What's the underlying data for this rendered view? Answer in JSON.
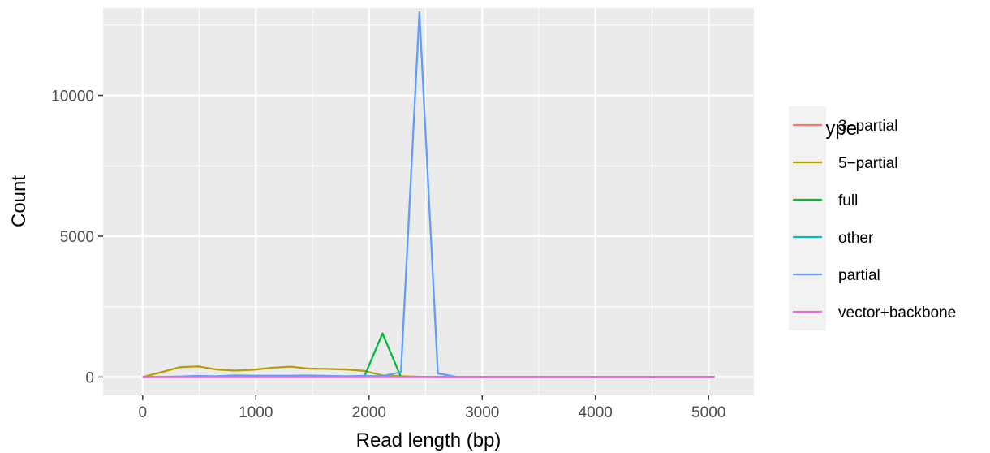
{
  "chart_data": {
    "type": "line",
    "title": "",
    "xlabel": "Read length (bp)",
    "ylabel": "Count",
    "xlim": [
      -350,
      5400
    ],
    "ylim": [
      -650,
      13100
    ],
    "x_ticks": [
      0,
      1000,
      2000,
      3000,
      4000,
      5000
    ],
    "x_tick_labels": [
      "0",
      "1000",
      "2000",
      "3000",
      "4000",
      "5000"
    ],
    "y_ticks": [
      0,
      5000,
      10000
    ],
    "y_tick_labels": [
      "0",
      "5000",
      "10000"
    ],
    "grid": true,
    "legend": {
      "title": "subtype",
      "position": "right"
    },
    "series": [
      {
        "name": "3−partial",
        "color": "#F8766D",
        "x": [
          0,
          163,
          326,
          489,
          652,
          815,
          978,
          1141,
          1304,
          1467,
          1630,
          1793,
          1956,
          2119,
          2282,
          2445,
          2608,
          2771,
          2934,
          3097,
          3260,
          3423,
          3586,
          3749,
          3912,
          4075,
          4238,
          4401,
          4564,
          4727,
          4890,
          5053
        ],
        "y": [
          0,
          2,
          5,
          8,
          8,
          10,
          10,
          12,
          12,
          12,
          10,
          8,
          8,
          5,
          3,
          2,
          0,
          0,
          0,
          0,
          0,
          0,
          0,
          0,
          0,
          0,
          0,
          0,
          0,
          0,
          0,
          0
        ]
      },
      {
        "name": "5−partial",
        "color": "#B79F00",
        "x": [
          0,
          163,
          326,
          489,
          652,
          815,
          978,
          1141,
          1304,
          1467,
          1630,
          1793,
          1956,
          2119,
          2282,
          2445,
          2608,
          2771,
          2934,
          3097,
          3260,
          3423,
          3586,
          3749,
          3912,
          4075,
          4238,
          4401,
          4564,
          4727,
          4890,
          5053
        ],
        "y": [
          0,
          170,
          350,
          380,
          270,
          230,
          260,
          330,
          370,
          300,
          290,
          270,
          220,
          60,
          30,
          10,
          0,
          0,
          0,
          0,
          0,
          0,
          0,
          0,
          0,
          0,
          0,
          0,
          0,
          0,
          0,
          0
        ]
      },
      {
        "name": "full",
        "color": "#00BA38",
        "x": [
          0,
          163,
          326,
          489,
          652,
          815,
          978,
          1141,
          1304,
          1467,
          1630,
          1793,
          1956,
          2119,
          2282,
          2445,
          2608,
          2771,
          2934,
          3097,
          3260,
          3423,
          3586,
          3749,
          3912,
          4075,
          4238,
          4401,
          4564,
          4727,
          4890,
          5053
        ],
        "y": [
          0,
          0,
          0,
          0,
          0,
          0,
          0,
          0,
          0,
          0,
          0,
          0,
          0,
          1550,
          0,
          0,
          0,
          0,
          0,
          0,
          0,
          0,
          0,
          0,
          0,
          0,
          0,
          0,
          0,
          0,
          0,
          0
        ]
      },
      {
        "name": "other",
        "color": "#00BFC4",
        "x": [
          0,
          163,
          326,
          489,
          652,
          815,
          978,
          1141,
          1304,
          1467,
          1630,
          1793,
          1956,
          2119,
          2282,
          2445,
          2608,
          2771,
          2934,
          3097,
          3260,
          3423,
          3586,
          3749,
          3912,
          4075,
          4238,
          4401,
          4564,
          4727,
          4890,
          5053
        ],
        "y": [
          0,
          0,
          0,
          0,
          0,
          0,
          0,
          0,
          0,
          0,
          0,
          0,
          0,
          0,
          0,
          0,
          0,
          0,
          0,
          0,
          0,
          0,
          0,
          0,
          0,
          0,
          0,
          0,
          0,
          0,
          0,
          0
        ]
      },
      {
        "name": "partial",
        "color": "#619CFF",
        "x": [
          0,
          163,
          326,
          489,
          652,
          815,
          978,
          1141,
          1304,
          1467,
          1630,
          1793,
          1956,
          2119,
          2282,
          2445,
          2608,
          2771,
          2934,
          3097,
          3260,
          3423,
          3586,
          3749,
          3912,
          4075,
          4238,
          4401,
          4564,
          4727,
          4890,
          5053
        ],
        "y": [
          0,
          5,
          20,
          40,
          30,
          60,
          50,
          45,
          50,
          55,
          40,
          30,
          40,
          30,
          180,
          12950,
          130,
          10,
          0,
          0,
          0,
          0,
          0,
          0,
          0,
          0,
          0,
          0,
          0,
          0,
          0,
          0
        ]
      },
      {
        "name": "vector+backbone",
        "color": "#F564E3",
        "x": [
          0,
          163,
          326,
          489,
          652,
          815,
          978,
          1141,
          1304,
          1467,
          1630,
          1793,
          1956,
          2119,
          2282,
          2445,
          2608,
          2771,
          2934,
          3097,
          3260,
          3423,
          3586,
          3749,
          3912,
          4075,
          4238,
          4401,
          4564,
          4727,
          4890,
          5053
        ],
        "y": [
          0,
          0,
          0,
          0,
          0,
          0,
          0,
          0,
          0,
          0,
          0,
          0,
          0,
          0,
          0,
          0,
          0,
          0,
          0,
          0,
          0,
          0,
          0,
          0,
          0,
          0,
          0,
          0,
          0,
          0,
          0,
          0
        ]
      }
    ]
  }
}
